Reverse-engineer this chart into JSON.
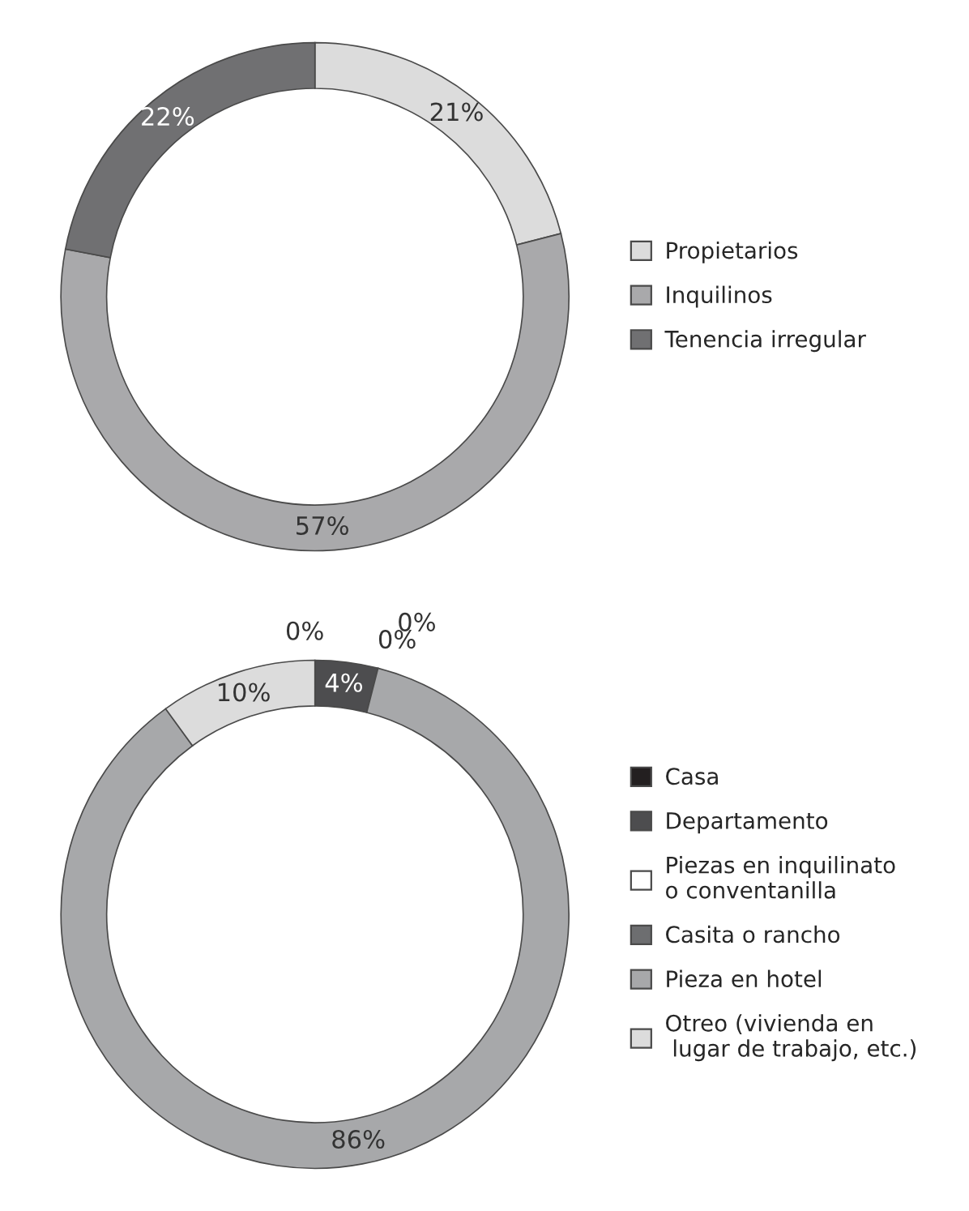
{
  "chart_data": [
    {
      "type": "donut",
      "categories": [
        "Propietarios",
        "Inquilinos",
        "Tenencia irregular"
      ],
      "values": [
        21,
        57,
        22
      ],
      "value_labels": [
        "21%",
        "57%",
        "22%"
      ],
      "colors": [
        "#dcdcdc",
        "#a9a9ab",
        "#707072"
      ],
      "legend": "right"
    },
    {
      "type": "donut",
      "categories": [
        "Casa",
        "Departamento",
        "Piezas en inquilinato\no conventanilla",
        "Casita o rancho",
        "Pieza en hotel",
        "Otreo (vivienda en\n lugar de trabajo, etc.)"
      ],
      "values": [
        0,
        4,
        0,
        0,
        86,
        10
      ],
      "value_labels": [
        "0%",
        "4%",
        "0%",
        "0%",
        "86%",
        "10%"
      ],
      "colors": [
        "#231f20",
        "#4d4d4f",
        "#ffffff",
        "#6d6e70",
        "#a7a8aa",
        "#dcdcdc"
      ],
      "legend": "right"
    }
  ]
}
